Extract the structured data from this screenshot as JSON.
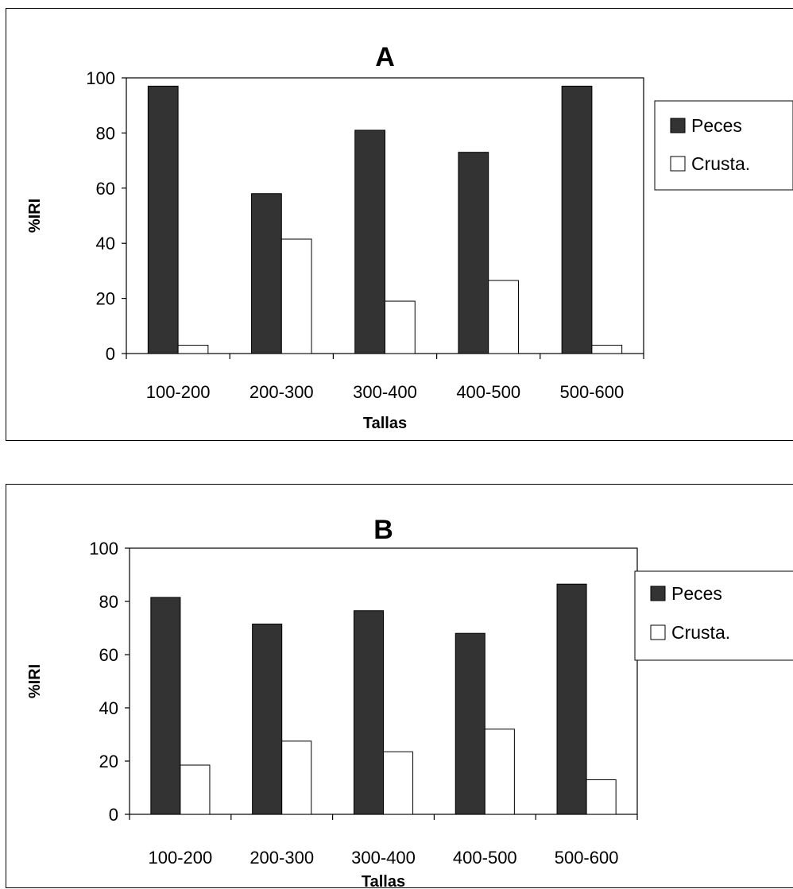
{
  "chart_data": [
    {
      "type": "bar",
      "title": "A",
      "xlabel": "Tallas",
      "ylabel": "%IRI",
      "categories": [
        "100-200",
        "200-300",
        "300-400",
        "400-500",
        "500-600"
      ],
      "ylim": [
        0,
        100
      ],
      "yticks": [
        "0",
        "20",
        "40",
        "60",
        "80",
        "100"
      ],
      "legend_position": "right",
      "series": [
        {
          "name": "Peces",
          "color": "#333333",
          "values": [
            97,
            58,
            81,
            73,
            97
          ]
        },
        {
          "name": "Crusta.",
          "color": "#ffffff",
          "values": [
            3,
            41.5,
            19,
            26.5,
            3
          ]
        }
      ]
    },
    {
      "type": "bar",
      "title": "B",
      "xlabel": "Tallas",
      "ylabel": "%IRI",
      "categories": [
        "100-200",
        "200-300",
        "300-400",
        "400-500",
        "500-600"
      ],
      "ylim": [
        0,
        100
      ],
      "yticks": [
        "0",
        "20",
        "40",
        "60",
        "80",
        "100"
      ],
      "legend_position": "right",
      "series": [
        {
          "name": "Peces",
          "color": "#333333",
          "values": [
            81.5,
            71.5,
            76.5,
            68,
            86.5
          ]
        },
        {
          "name": "Crusta.",
          "color": "#ffffff",
          "values": [
            18.5,
            27.5,
            23.5,
            32,
            13
          ]
        }
      ]
    }
  ]
}
